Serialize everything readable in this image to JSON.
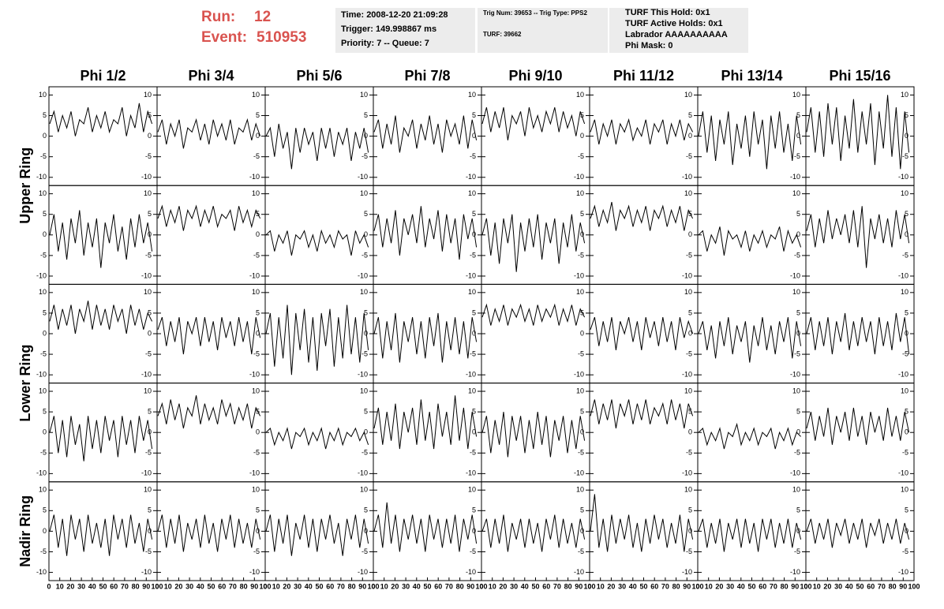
{
  "header": {
    "run_label": "Run:",
    "run": 12,
    "event_label": "Event:",
    "event": 510953,
    "box1": [
      "Time: 2008-12-20 21:09:28",
      "Trigger: 149.998867 ms",
      "Priority: 7 -- Queue: 7"
    ],
    "box2": [
      "Trig Num: 39653 -- Trig Type: PPS2",
      "TURF: 39662"
    ],
    "box3": [
      "TURF This Hold: 0x1",
      "TURF Active Holds: 0x1",
      "Labrador AAAAAAAAAA",
      "Phi Mask: 0"
    ]
  },
  "chart_data": {
    "type": "line",
    "columns": [
      "Phi 1/2",
      "Phi 3/4",
      "Phi 5/6",
      "Phi 7/8",
      "Phi 9/10",
      "Phi 11/12",
      "Phi 13/14",
      "Phi 15/16"
    ],
    "rows": [
      "Upper Ring",
      "Lower Ring",
      "Nadir Ring"
    ],
    "xlim": [
      0,
      100
    ],
    "xticks": [
      0,
      10,
      20,
      30,
      40,
      50,
      60,
      70,
      80,
      90,
      100
    ],
    "ylim": [
      -12,
      12
    ],
    "yticks": [
      -10,
      -5,
      0,
      5,
      10
    ],
    "x": [
      0,
      4,
      8,
      12,
      16,
      20,
      24,
      28,
      32,
      36,
      40,
      44,
      48,
      52,
      56,
      60,
      64,
      68,
      72,
      76,
      80,
      84,
      88,
      92,
      96
    ],
    "panels": [
      [
        [
          3,
          6,
          1,
          5,
          2,
          6,
          0,
          4,
          3,
          7,
          1,
          5,
          2,
          6,
          1,
          4,
          3,
          7,
          0,
          5,
          2,
          8,
          1,
          6,
          3
        ],
        [
          1,
          4,
          -2,
          3,
          0,
          4,
          -3,
          2,
          1,
          4,
          -1,
          3,
          -2,
          4,
          0,
          3,
          -1,
          4,
          -2,
          2,
          1,
          4,
          -1,
          3,
          0
        ],
        [
          0,
          2,
          -5,
          3,
          -3,
          1,
          -8,
          2,
          -4,
          2,
          -2,
          1,
          -6,
          2,
          -3,
          2,
          -5,
          1,
          -2,
          2,
          -6,
          1,
          -3,
          2,
          -4
        ],
        [
          1,
          4,
          -3,
          3,
          -2,
          5,
          -4,
          2,
          0,
          4,
          -3,
          3,
          -1,
          5,
          -2,
          3,
          -4,
          4,
          0,
          3,
          -2,
          5,
          -3,
          4,
          -1
        ],
        [
          3,
          7,
          1,
          6,
          2,
          7,
          -1,
          5,
          3,
          6,
          0,
          7,
          2,
          5,
          1,
          6,
          3,
          7,
          1,
          6,
          2,
          5,
          0,
          6,
          3
        ],
        [
          1,
          4,
          -2,
          3,
          0,
          4,
          -2,
          3,
          1,
          4,
          -1,
          2,
          0,
          4,
          -2,
          3,
          1,
          4,
          -2,
          3,
          0,
          4,
          -1,
          3,
          1
        ],
        [
          0,
          6,
          -4,
          5,
          -6,
          4,
          -2,
          6,
          -7,
          3,
          -3,
          5,
          -5,
          6,
          -2,
          4,
          -8,
          5,
          -3,
          6,
          -4,
          3,
          -6,
          5,
          -2
        ],
        [
          1,
          7,
          -4,
          6,
          -5,
          8,
          -2,
          7,
          -6,
          5,
          -3,
          9,
          -4,
          6,
          -2,
          8,
          -7,
          6,
          -3,
          10,
          -5,
          7,
          -8,
          6,
          -4
        ]
      ],
      [
        [
          0,
          5,
          -4,
          3,
          -6,
          4,
          -2,
          6,
          -5,
          3,
          -3,
          4,
          -8,
          3,
          -2,
          5,
          -4,
          2,
          -6,
          4,
          -3,
          5,
          -2,
          3,
          -4
        ],
        [
          4,
          7,
          2,
          6,
          3,
          7,
          1,
          6,
          4,
          7,
          2,
          6,
          3,
          7,
          2,
          5,
          4,
          6,
          1,
          7,
          3,
          6,
          2,
          6,
          4
        ],
        [
          0,
          1,
          -4,
          0,
          -2,
          1,
          -5,
          0,
          -1,
          1,
          -3,
          0,
          -4,
          1,
          -2,
          0,
          -3,
          1,
          -1,
          0,
          -5,
          1,
          -2,
          0,
          -3
        ],
        [
          1,
          5,
          -3,
          4,
          -2,
          6,
          -5,
          4,
          0,
          5,
          -2,
          7,
          -3,
          4,
          -1,
          6,
          -4,
          5,
          -2,
          4,
          -6,
          5,
          -1,
          4,
          -3
        ],
        [
          0,
          4,
          -5,
          3,
          -7,
          4,
          -2,
          5,
          -9,
          3,
          -4,
          4,
          -3,
          5,
          -6,
          3,
          -2,
          4,
          -7,
          3,
          -3,
          5,
          -4,
          3,
          -2
        ],
        [
          4,
          7,
          2,
          6,
          3,
          8,
          1,
          6,
          4,
          7,
          2,
          6,
          3,
          7,
          1,
          6,
          4,
          7,
          2,
          6,
          3,
          7,
          1,
          6,
          4
        ],
        [
          0,
          1,
          -4,
          0,
          -2,
          2,
          -5,
          1,
          -1,
          0,
          -3,
          1,
          -4,
          0,
          -2,
          1,
          -3,
          0,
          -1,
          2,
          -4,
          1,
          -2,
          0,
          -3
        ],
        [
          1,
          5,
          -3,
          4,
          -2,
          6,
          -1,
          4,
          0,
          5,
          -2,
          6,
          -3,
          7,
          -8,
          4,
          -1,
          5,
          -2,
          4,
          -3,
          6,
          -1,
          5,
          -2
        ]
      ],
      [
        [
          3,
          7,
          1,
          6,
          2,
          7,
          0,
          6,
          3,
          8,
          1,
          7,
          2,
          6,
          1,
          7,
          3,
          6,
          0,
          7,
          2,
          6,
          1,
          5,
          3
        ],
        [
          1,
          4,
          -3,
          3,
          -2,
          4,
          -5,
          3,
          0,
          4,
          -3,
          4,
          -2,
          3,
          -4,
          4,
          -1,
          3,
          -3,
          4,
          -2,
          3,
          -5,
          4,
          -1
        ],
        [
          0,
          5,
          -8,
          4,
          -6,
          7,
          -10,
          5,
          -4,
          6,
          -7,
          4,
          -9,
          5,
          -3,
          6,
          -8,
          4,
          -6,
          7,
          -5,
          4,
          -7,
          5,
          -4
        ],
        [
          0,
          4,
          -6,
          3,
          -4,
          5,
          -7,
          3,
          -2,
          4,
          -5,
          3,
          -6,
          4,
          -3,
          5,
          -7,
          3,
          -4,
          4,
          -5,
          3,
          -6,
          4,
          -2
        ],
        [
          4,
          7,
          2,
          6,
          3,
          7,
          2,
          6,
          4,
          7,
          3,
          6,
          2,
          7,
          3,
          6,
          4,
          7,
          2,
          6,
          3,
          7,
          2,
          6,
          4
        ],
        [
          1,
          4,
          -3,
          3,
          -2,
          4,
          -4,
          3,
          0,
          4,
          -2,
          3,
          -4,
          4,
          -1,
          3,
          -3,
          4,
          -2,
          3,
          -4,
          4,
          -1,
          3,
          0
        ],
        [
          0,
          3,
          -4,
          2,
          -6,
          3,
          -3,
          4,
          -5,
          2,
          -2,
          3,
          -7,
          2,
          -3,
          4,
          -4,
          2,
          -5,
          3,
          -2,
          4,
          -6,
          3,
          -3
        ],
        [
          0,
          4,
          -4,
          3,
          -3,
          4,
          -5,
          3,
          -2,
          5,
          -4,
          3,
          -3,
          4,
          -2,
          3,
          -5,
          4,
          -3,
          3,
          -4,
          5,
          -2,
          4,
          -5
        ]
      ],
      [
        [
          0,
          4,
          -5,
          3,
          -6,
          4,
          -3,
          2,
          -7,
          4,
          -4,
          3,
          -5,
          4,
          -2,
          3,
          -6,
          4,
          -3,
          3,
          -5,
          4,
          -2,
          3,
          -4
        ],
        [
          4,
          7,
          2,
          8,
          3,
          7,
          1,
          6,
          4,
          9,
          2,
          7,
          3,
          6,
          2,
          8,
          4,
          7,
          2,
          6,
          3,
          7,
          1,
          6,
          4
        ],
        [
          0,
          1,
          -3,
          0,
          -2,
          1,
          -4,
          0,
          -1,
          1,
          -3,
          0,
          -2,
          1,
          -4,
          0,
          -2,
          1,
          -3,
          0,
          -1,
          1,
          -2,
          0,
          -3
        ],
        [
          1,
          6,
          -3,
          5,
          -2,
          7,
          -4,
          5,
          0,
          6,
          -3,
          8,
          -2,
          5,
          -4,
          7,
          -1,
          5,
          -3,
          9,
          -2,
          6,
          -4,
          5,
          -1
        ],
        [
          0,
          4,
          -5,
          3,
          -3,
          5,
          -6,
          4,
          -2,
          4,
          -5,
          3,
          -4,
          5,
          -3,
          4,
          -6,
          3,
          -2,
          4,
          -5,
          3,
          -4,
          4,
          -2
        ],
        [
          4,
          8,
          2,
          7,
          3,
          8,
          1,
          7,
          4,
          8,
          2,
          7,
          3,
          8,
          2,
          6,
          4,
          7,
          2,
          8,
          3,
          7,
          1,
          7,
          4
        ],
        [
          0,
          1,
          -3,
          0,
          -2,
          1,
          -4,
          0,
          -1,
          2,
          -3,
          0,
          -2,
          1,
          -3,
          0,
          -1,
          1,
          -4,
          0,
          -2,
          1,
          -3,
          0,
          -1
        ],
        [
          1,
          5,
          -2,
          4,
          -1,
          6,
          -3,
          4,
          0,
          5,
          -2,
          6,
          -1,
          4,
          -3,
          5,
          0,
          4,
          -2,
          6,
          -1,
          4,
          -2,
          5,
          0
        ]
      ],
      [
        [
          0,
          4,
          -4,
          3,
          -6,
          4,
          -2,
          3,
          -5,
          4,
          -3,
          2,
          -4,
          3,
          -6,
          4,
          -2,
          3,
          -4,
          4,
          -3,
          2,
          -5,
          3,
          -2
        ],
        [
          0,
          4,
          -4,
          3,
          -3,
          4,
          -5,
          2,
          -2,
          3,
          -4,
          4,
          -3,
          2,
          -5,
          3,
          -2,
          4,
          -4,
          3,
          -3,
          2,
          -4,
          3,
          -2
        ],
        [
          0,
          4,
          -5,
          3,
          -3,
          4,
          -6,
          2,
          -2,
          4,
          -4,
          3,
          -5,
          3,
          -2,
          4,
          -3,
          2,
          -6,
          3,
          -2,
          4,
          -4,
          3,
          -3
        ],
        [
          0,
          4,
          -4,
          7,
          -3,
          4,
          -5,
          3,
          -2,
          4,
          -3,
          3,
          -5,
          4,
          -2,
          3,
          -4,
          3,
          -3,
          4,
          -5,
          3,
          -2,
          4,
          -3
        ],
        [
          0,
          3,
          -4,
          3,
          -3,
          4,
          -5,
          2,
          -2,
          3,
          -4,
          3,
          -3,
          2,
          -5,
          3,
          -2,
          4,
          -4,
          3,
          -3,
          2,
          -4,
          3,
          -2
        ],
        [
          0,
          9,
          -4,
          3,
          -5,
          4,
          -3,
          3,
          -2,
          4,
          -4,
          2,
          -5,
          3,
          -3,
          4,
          -2,
          3,
          -4,
          2,
          -3,
          4,
          -5,
          3,
          -2
        ],
        [
          0,
          3,
          -4,
          2,
          -3,
          3,
          -5,
          2,
          -2,
          3,
          -4,
          3,
          -3,
          2,
          -5,
          3,
          -2,
          3,
          -4,
          2,
          -3,
          3,
          -4,
          2,
          -2
        ],
        [
          0,
          3,
          -3,
          2,
          -2,
          3,
          -4,
          2,
          -1,
          3,
          -3,
          2,
          -2,
          3,
          -4,
          2,
          -1,
          3,
          -3,
          2,
          -2,
          3,
          -3,
          2,
          -2
        ]
      ]
    ]
  }
}
